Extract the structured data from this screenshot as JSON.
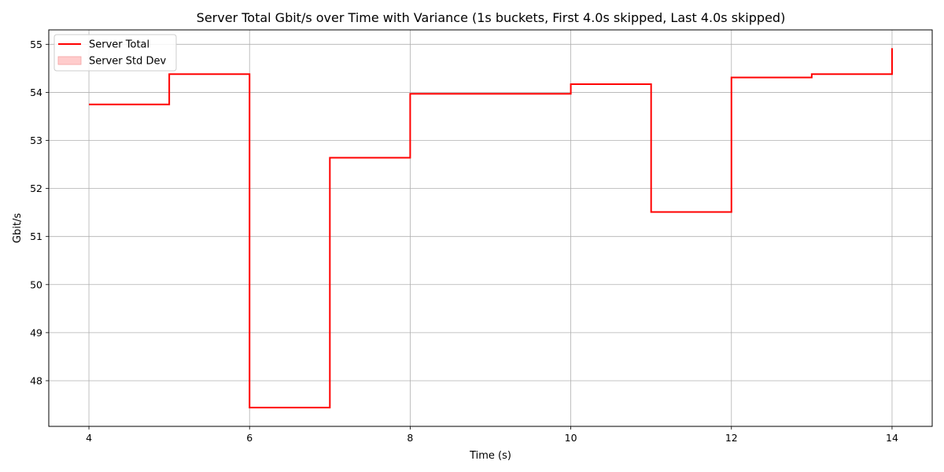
{
  "chart_data": {
    "type": "line",
    "step": "post",
    "title": "Server Total Gbit/s over Time with Variance (1s buckets, First 4.0s skipped, Last 4.0s skipped)",
    "xlabel": "Time (s)",
    "ylabel": "Gbit/s",
    "xlim": [
      3.5,
      14.5
    ],
    "ylim": [
      47.05,
      55.3
    ],
    "xticks": [
      4,
      6,
      8,
      10,
      12,
      14
    ],
    "yticks": [
      48,
      49,
      50,
      51,
      52,
      53,
      54,
      55
    ],
    "grid": true,
    "legend_position": "top-left",
    "series": [
      {
        "name": "Server Total",
        "color": "#ff0000",
        "x": [
          4,
          5,
          6,
          7,
          8,
          9,
          10,
          11,
          12,
          13,
          14
        ],
        "values": [
          53.75,
          54.38,
          47.44,
          52.64,
          53.97,
          53.97,
          54.17,
          51.51,
          54.31,
          54.38,
          54.92
        ]
      }
    ],
    "legend": [
      {
        "label": "Server Total",
        "kind": "line",
        "color": "#ff0000"
      },
      {
        "label": "Server Std Dev",
        "kind": "patch",
        "color": "#ffcccc",
        "edge": "#f5a3a3"
      }
    ]
  }
}
